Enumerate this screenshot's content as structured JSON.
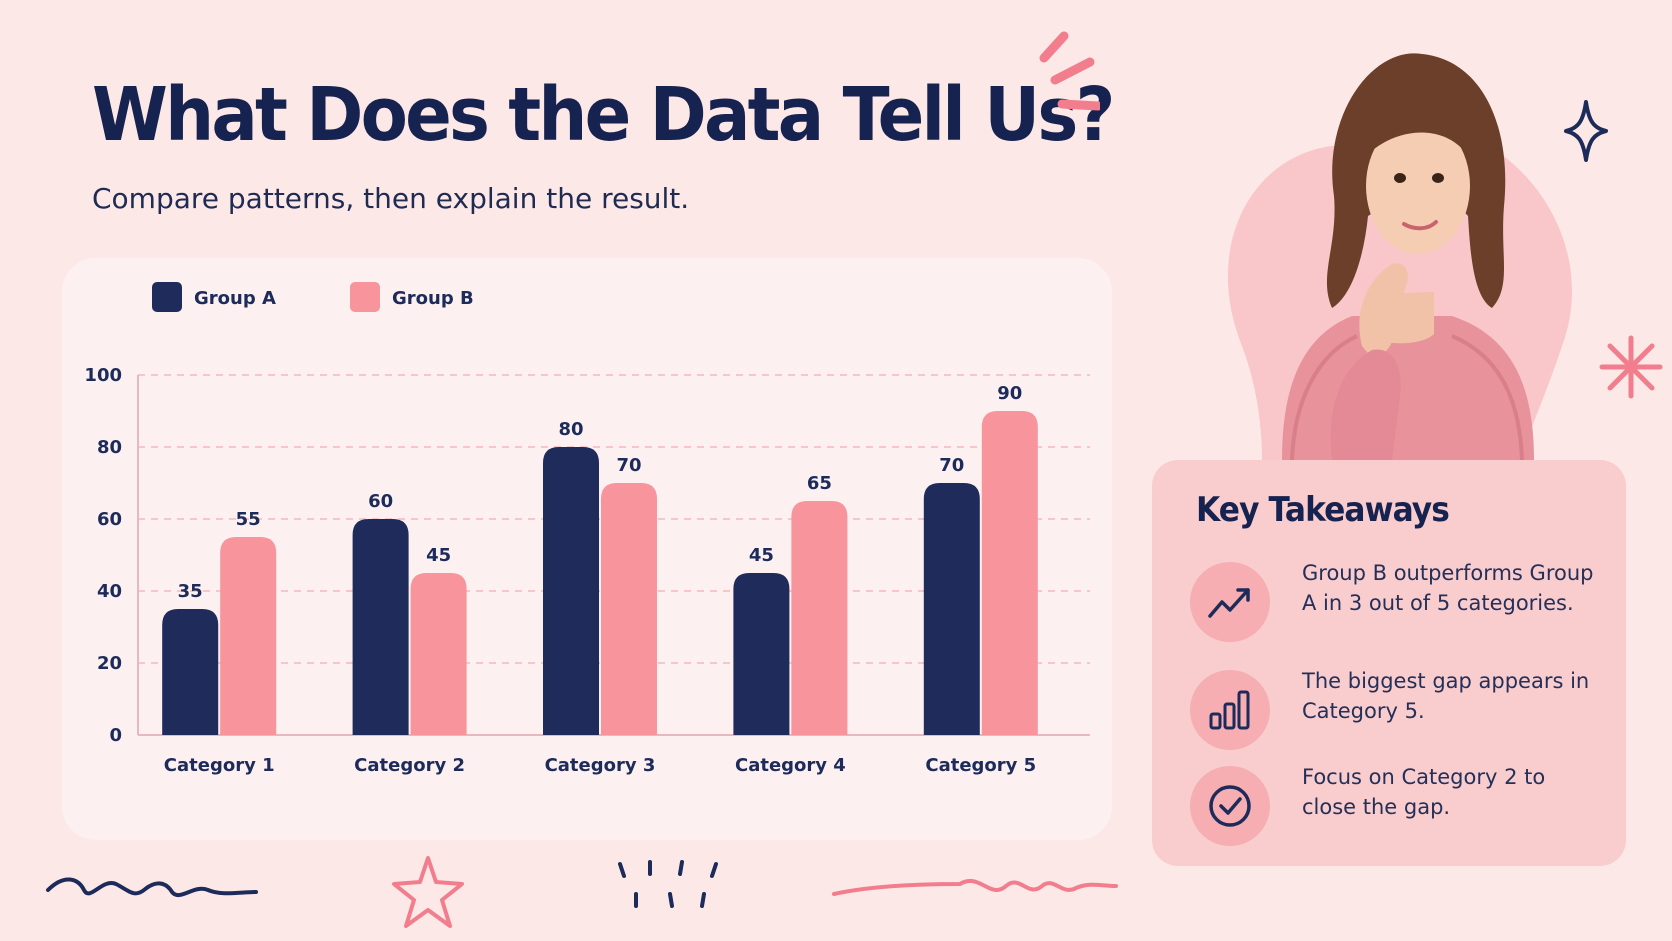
{
  "header": {
    "title": "What Does the Data Tell Us?",
    "subtitle": "Compare patterns, then explain the result."
  },
  "colors": {
    "group_a": "#1e2b5b",
    "group_b": "#f7949c",
    "background": "#fde8e8",
    "takeaway_bg": "#f9cccd",
    "icon_bg": "#f6aeb3",
    "grid": "#f3b7bd"
  },
  "chart_data": {
    "type": "bar",
    "categories": [
      "Category 1",
      "Category 2",
      "Category 3",
      "Category 4",
      "Category 5"
    ],
    "series": [
      {
        "name": "Group A",
        "values": [
          35,
          60,
          80,
          45,
          70
        ]
      },
      {
        "name": "Group B",
        "values": [
          55,
          45,
          70,
          65,
          90
        ]
      }
    ],
    "y_ticks": [
      0,
      20,
      40,
      60,
      80,
      100
    ],
    "ylim": [
      0,
      100
    ],
    "xlabel": "",
    "ylabel": "",
    "grid": true,
    "legend_position": "top-left",
    "data_labels": true
  },
  "takeaways": {
    "title": "Key Takeaways",
    "items": [
      {
        "icon": "trend-up-icon",
        "text": "Group B outperforms Group A in 3 out of 5 categories."
      },
      {
        "icon": "bar-chart-icon",
        "text": "The biggest gap appears in Category 5."
      },
      {
        "icon": "check-circle-icon",
        "text": "Focus on Category 2 to close the gap."
      }
    ]
  }
}
